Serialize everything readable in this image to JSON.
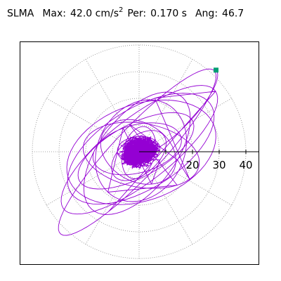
{
  "header": {
    "station": "SLMA",
    "max_label": "Max:",
    "max_value": "42.0 cm/s",
    "max_unit_power": "2",
    "per_label": "Per:",
    "per_value": "0.170 s",
    "ang_label": "Ang:",
    "ang_value": "46.7"
  },
  "colors": {
    "trace": "#9400d3",
    "marker": "#009e73",
    "grid": "#888888",
    "axis": "#000000"
  },
  "chart_data": {
    "type": "scatter",
    "title": "SLMA  Max: 42.0 cm/s2  Per: 0.170 s  Ang: 46.7",
    "radial_ticks": [
      10,
      20,
      30,
      40
    ],
    "radial_tick_labels": [
      "20",
      "30",
      "40"
    ],
    "radial_max": 40,
    "grid": true,
    "peak": {
      "amplitude": 42.0,
      "angle_deg": 46.7
    },
    "orbit_series": [
      {
        "amp_major": 42.0,
        "amp_minor": 9.0,
        "angle_deg": 46.7
      },
      {
        "amp_major": 36.0,
        "amp_minor": 12.0,
        "angle_deg": 38.0
      },
      {
        "amp_major": 31.0,
        "amp_minor": 15.0,
        "angle_deg": 32.0
      },
      {
        "amp_major": 29.0,
        "amp_minor": 18.0,
        "angle_deg": 20.0
      },
      {
        "amp_major": 27.0,
        "amp_minor": 14.0,
        "angle_deg": 52.0
      },
      {
        "amp_major": 24.0,
        "amp_minor": 10.0,
        "angle_deg": 28.0
      },
      {
        "amp_major": 22.0,
        "amp_minor": 12.0,
        "angle_deg": -10.0
      },
      {
        "amp_major": 20.0,
        "amp_minor": 16.0,
        "angle_deg": 60.0
      },
      {
        "amp_major": 17.0,
        "amp_minor": 9.0,
        "angle_deg": 15.0
      },
      {
        "amp_major": 15.0,
        "amp_minor": 11.0,
        "angle_deg": -30.0
      },
      {
        "amp_major": 12.0,
        "amp_minor": 7.0,
        "angle_deg": 40.0
      },
      {
        "amp_major": 10.0,
        "amp_minor": 6.0,
        "angle_deg": 75.0
      },
      {
        "amp_major": 8.0,
        "amp_minor": 5.0,
        "angle_deg": 5.0
      },
      {
        "amp_major": 6.0,
        "amp_minor": 4.0,
        "angle_deg": 55.0
      }
    ],
    "scatter_cloud_amplitude_max": 9.0
  }
}
